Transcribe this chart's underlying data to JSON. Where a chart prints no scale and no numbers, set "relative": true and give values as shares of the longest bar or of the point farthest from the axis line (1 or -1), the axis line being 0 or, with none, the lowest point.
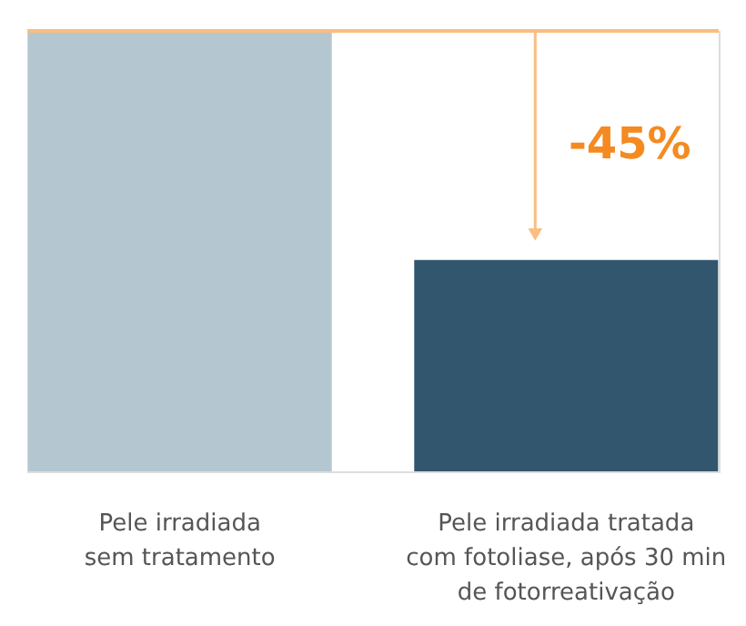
{
  "chart_data": {
    "type": "bar",
    "relative": true,
    "categories": [
      "Pele irradiada\nsem tratamento",
      "Pele irradiada tratada\ncom fotoliase, após 30 min\nde fotorreativação"
    ],
    "values": [
      1,
      0.48
    ],
    "colors": [
      "#b4c7d0",
      "#31566d"
    ],
    "ref_lines": [
      {
        "axis": "y",
        "value": 1,
        "color": "#fbbd80"
      }
    ],
    "annotations": [
      "-45%"
    ]
  }
}
